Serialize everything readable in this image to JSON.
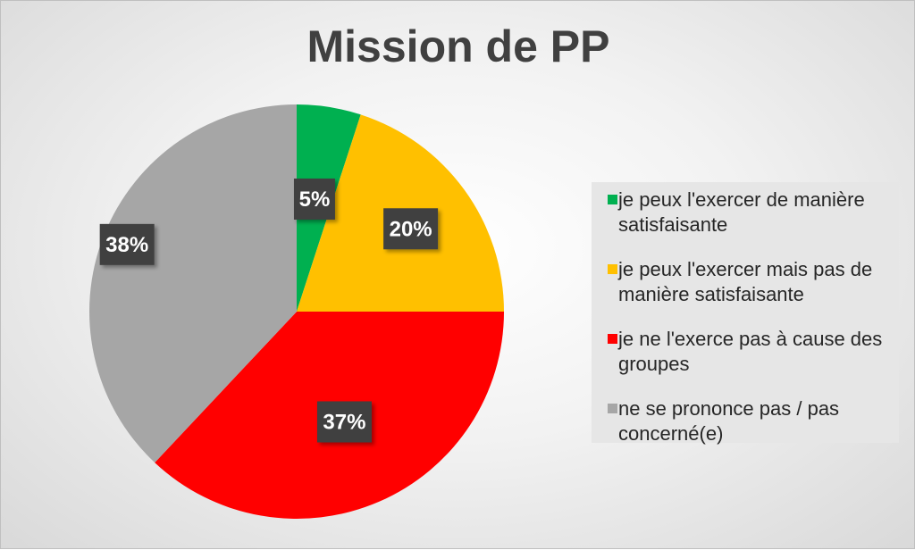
{
  "chart_data": {
    "type": "pie",
    "title": "Mission de PP",
    "slices": [
      {
        "label": "je peux l'exercer de manière satisfaisante",
        "value": 5,
        "data_label": "5%",
        "color": "#00b050"
      },
      {
        "label": " je peux l'exercer mais pas de manière satisfaisante",
        "value": 20,
        "data_label": "20%",
        "color": "#ffc000"
      },
      {
        "label": " je ne l'exerce pas à cause des groupes",
        "value": 37,
        "data_label": "37%",
        "color": "#ff0000"
      },
      {
        "label": " ne se prononce pas / pas concerné(e)",
        "value": 38,
        "data_label": "38%",
        "color": "#a6a6a6"
      }
    ],
    "legend_position": "right",
    "label_style": {
      "background": "#404040",
      "text": "#ffffff"
    }
  }
}
